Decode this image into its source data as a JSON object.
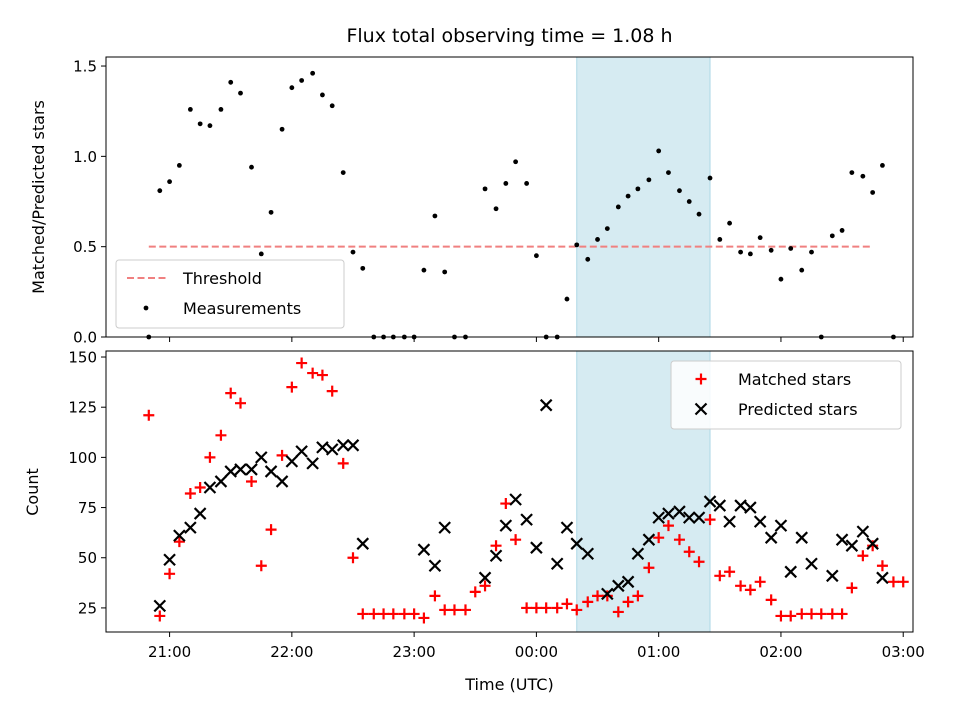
{
  "chart_data": [
    {
      "type": "scatter",
      "title": "Flux total observing time = 1.08 h",
      "ylabel": "Matched/Predicted stars",
      "xlabel": "",
      "ylim": [
        0,
        1.55
      ],
      "yticks": [
        0,
        0.5,
        1.0,
        1.5
      ],
      "ytick_labels": [
        "0.0",
        "0.5",
        "1.0",
        "1.5"
      ],
      "xrange_hours": [
        20.48,
        27.08
      ],
      "highlight_span_hours": [
        24.33,
        25.42
      ],
      "threshold": {
        "name": "Threshold",
        "y": 0.5,
        "x_start": 20.83,
        "x_end": 26.75,
        "color": "#f08080"
      },
      "legend": {
        "location": "lower-left",
        "entries": [
          "Threshold",
          "Measurements"
        ]
      },
      "series": [
        {
          "name": "Measurements",
          "marker": "dot",
          "color": "#000000",
          "points": [
            [
              20.83,
              0.0
            ],
            [
              20.92,
              0.81
            ],
            [
              21.0,
              0.86
            ],
            [
              21.08,
              0.95
            ],
            [
              21.17,
              1.26
            ],
            [
              21.25,
              1.18
            ],
            [
              21.33,
              1.17
            ],
            [
              21.42,
              1.26
            ],
            [
              21.5,
              1.41
            ],
            [
              21.58,
              1.35
            ],
            [
              21.67,
              0.94
            ],
            [
              21.75,
              0.46
            ],
            [
              21.83,
              0.69
            ],
            [
              21.92,
              1.15
            ],
            [
              22.0,
              1.38
            ],
            [
              22.08,
              1.42
            ],
            [
              22.17,
              1.46
            ],
            [
              22.25,
              1.34
            ],
            [
              22.33,
              1.28
            ],
            [
              22.42,
              0.91
            ],
            [
              22.5,
              0.47
            ],
            [
              22.58,
              0.38
            ],
            [
              22.67,
              0.0
            ],
            [
              22.75,
              0.0
            ],
            [
              22.83,
              0.0
            ],
            [
              22.92,
              0.0
            ],
            [
              23.0,
              0.0
            ],
            [
              23.08,
              0.37
            ],
            [
              23.17,
              0.67
            ],
            [
              23.25,
              0.36
            ],
            [
              23.33,
              0.0
            ],
            [
              23.42,
              0.0
            ],
            [
              23.58,
              0.82
            ],
            [
              23.67,
              0.71
            ],
            [
              23.75,
              0.85
            ],
            [
              23.83,
              0.97
            ],
            [
              23.92,
              0.85
            ],
            [
              24.0,
              0.45
            ],
            [
              24.08,
              0.0
            ],
            [
              24.17,
              0.0
            ],
            [
              24.25,
              0.21
            ],
            [
              24.33,
              0.51
            ],
            [
              24.42,
              0.43
            ],
            [
              24.5,
              0.54
            ],
            [
              24.58,
              0.6
            ],
            [
              24.67,
              0.72
            ],
            [
              24.75,
              0.78
            ],
            [
              24.83,
              0.82
            ],
            [
              24.92,
              0.87
            ],
            [
              25.0,
              1.03
            ],
            [
              25.08,
              0.91
            ],
            [
              25.17,
              0.81
            ],
            [
              25.25,
              0.75
            ],
            [
              25.33,
              0.68
            ],
            [
              25.42,
              0.88
            ],
            [
              25.5,
              0.54
            ],
            [
              25.58,
              0.63
            ],
            [
              25.67,
              0.47
            ],
            [
              25.75,
              0.46
            ],
            [
              25.83,
              0.55
            ],
            [
              25.92,
              0.48
            ],
            [
              26.0,
              0.32
            ],
            [
              26.08,
              0.49
            ],
            [
              26.17,
              0.37
            ],
            [
              26.25,
              0.47
            ],
            [
              26.33,
              0.0
            ],
            [
              26.42,
              0.56
            ],
            [
              26.5,
              0.59
            ],
            [
              26.58,
              0.91
            ],
            [
              26.67,
              0.89
            ],
            [
              26.75,
              0.8
            ],
            [
              26.83,
              0.95
            ],
            [
              26.92,
              0.0
            ]
          ]
        }
      ]
    },
    {
      "type": "scatter",
      "title": "",
      "ylabel": "Count",
      "xlabel": "Time (UTC)",
      "ylim": [
        13,
        153
      ],
      "yticks": [
        25,
        50,
        75,
        100,
        125,
        150
      ],
      "ytick_labels": [
        "25",
        "50",
        "75",
        "100",
        "125",
        "150"
      ],
      "xrange_hours": [
        20.48,
        27.08
      ],
      "xticks_hours": [
        21,
        22,
        23,
        24,
        25,
        26,
        27
      ],
      "xtick_labels": [
        "21:00",
        "22:00",
        "23:00",
        "00:00",
        "01:00",
        "02:00",
        "03:00"
      ],
      "highlight_span_hours": [
        24.33,
        25.42
      ],
      "legend": {
        "location": "upper-right",
        "entries": [
          "Matched stars",
          "Predicted stars"
        ]
      },
      "series": [
        {
          "name": "Matched stars",
          "marker": "plus",
          "color": "#ff0000",
          "points": [
            [
              20.83,
              121
            ],
            [
              20.92,
              21
            ],
            [
              21.0,
              42
            ],
            [
              21.08,
              58
            ],
            [
              21.17,
              82
            ],
            [
              21.25,
              85
            ],
            [
              21.33,
              100
            ],
            [
              21.42,
              111
            ],
            [
              21.5,
              132
            ],
            [
              21.58,
              127
            ],
            [
              21.67,
              88
            ],
            [
              21.75,
              46
            ],
            [
              21.83,
              64
            ],
            [
              21.92,
              101
            ],
            [
              22.0,
              135
            ],
            [
              22.08,
              147
            ],
            [
              22.17,
              142
            ],
            [
              22.25,
              141
            ],
            [
              22.33,
              133
            ],
            [
              22.42,
              97
            ],
            [
              22.5,
              50
            ],
            [
              22.58,
              22
            ],
            [
              22.67,
              22
            ],
            [
              22.75,
              22
            ],
            [
              22.83,
              22
            ],
            [
              22.92,
              22
            ],
            [
              23.0,
              22
            ],
            [
              23.08,
              20
            ],
            [
              23.17,
              31
            ],
            [
              23.25,
              24
            ],
            [
              23.33,
              24
            ],
            [
              23.42,
              24
            ],
            [
              23.5,
              33
            ],
            [
              23.58,
              36
            ],
            [
              23.67,
              56
            ],
            [
              23.75,
              77
            ],
            [
              23.83,
              59
            ],
            [
              23.92,
              25
            ],
            [
              24.0,
              25
            ],
            [
              24.08,
              25
            ],
            [
              24.17,
              25
            ],
            [
              24.25,
              27
            ],
            [
              24.33,
              24
            ],
            [
              24.42,
              28
            ],
            [
              24.5,
              31
            ],
            [
              24.58,
              31
            ],
            [
              24.67,
              23
            ],
            [
              24.75,
              28
            ],
            [
              24.83,
              31
            ],
            [
              24.92,
              45
            ],
            [
              25.0,
              60
            ],
            [
              25.08,
              66
            ],
            [
              25.17,
              59
            ],
            [
              25.25,
              53
            ],
            [
              25.33,
              48
            ],
            [
              25.42,
              69
            ],
            [
              25.5,
              41
            ],
            [
              25.58,
              43
            ],
            [
              25.67,
              36
            ],
            [
              25.75,
              34
            ],
            [
              25.83,
              38
            ],
            [
              25.92,
              29
            ],
            [
              26.0,
              21
            ],
            [
              26.08,
              21
            ],
            [
              26.17,
              22
            ],
            [
              26.25,
              22
            ],
            [
              26.33,
              22
            ],
            [
              26.42,
              22
            ],
            [
              26.5,
              22
            ],
            [
              26.58,
              35
            ],
            [
              26.67,
              51
            ],
            [
              26.75,
              56
            ],
            [
              26.83,
              46
            ],
            [
              26.92,
              38
            ],
            [
              27.0,
              38
            ]
          ]
        },
        {
          "name": "Predicted stars",
          "marker": "x",
          "color": "#000000",
          "points": [
            [
              20.92,
              26
            ],
            [
              21.0,
              49
            ],
            [
              21.08,
              61
            ],
            [
              21.17,
              65
            ],
            [
              21.25,
              72
            ],
            [
              21.33,
              85
            ],
            [
              21.42,
              88
            ],
            [
              21.5,
              93
            ],
            [
              21.58,
              94
            ],
            [
              21.67,
              94
            ],
            [
              21.75,
              100
            ],
            [
              21.83,
              93
            ],
            [
              21.92,
              88
            ],
            [
              22.0,
              98
            ],
            [
              22.08,
              103
            ],
            [
              22.17,
              97
            ],
            [
              22.25,
              105
            ],
            [
              22.33,
              104
            ],
            [
              22.42,
              106
            ],
            [
              22.5,
              106
            ],
            [
              22.58,
              57
            ],
            [
              23.08,
              54
            ],
            [
              23.17,
              46
            ],
            [
              23.25,
              65
            ],
            [
              23.58,
              40
            ],
            [
              23.67,
              51
            ],
            [
              23.75,
              66
            ],
            [
              23.83,
              79
            ],
            [
              23.92,
              69
            ],
            [
              24.0,
              55
            ],
            [
              24.08,
              126
            ],
            [
              24.17,
              47
            ],
            [
              24.25,
              65
            ],
            [
              24.33,
              57
            ],
            [
              24.42,
              52
            ],
            [
              24.58,
              32
            ],
            [
              24.67,
              36
            ],
            [
              24.75,
              38
            ],
            [
              24.83,
              52
            ],
            [
              24.92,
              59
            ],
            [
              25.0,
              70
            ],
            [
              25.08,
              72
            ],
            [
              25.17,
              73
            ],
            [
              25.25,
              70
            ],
            [
              25.33,
              70
            ],
            [
              25.42,
              78
            ],
            [
              25.5,
              76
            ],
            [
              25.58,
              68
            ],
            [
              25.67,
              76
            ],
            [
              25.75,
              75
            ],
            [
              25.83,
              68
            ],
            [
              25.92,
              60
            ],
            [
              26.0,
              66
            ],
            [
              26.08,
              43
            ],
            [
              26.17,
              60
            ],
            [
              26.25,
              47
            ],
            [
              26.42,
              41
            ],
            [
              26.5,
              59
            ],
            [
              26.58,
              56
            ],
            [
              26.67,
              63
            ],
            [
              26.75,
              57
            ],
            [
              26.83,
              40
            ]
          ]
        }
      ]
    }
  ]
}
